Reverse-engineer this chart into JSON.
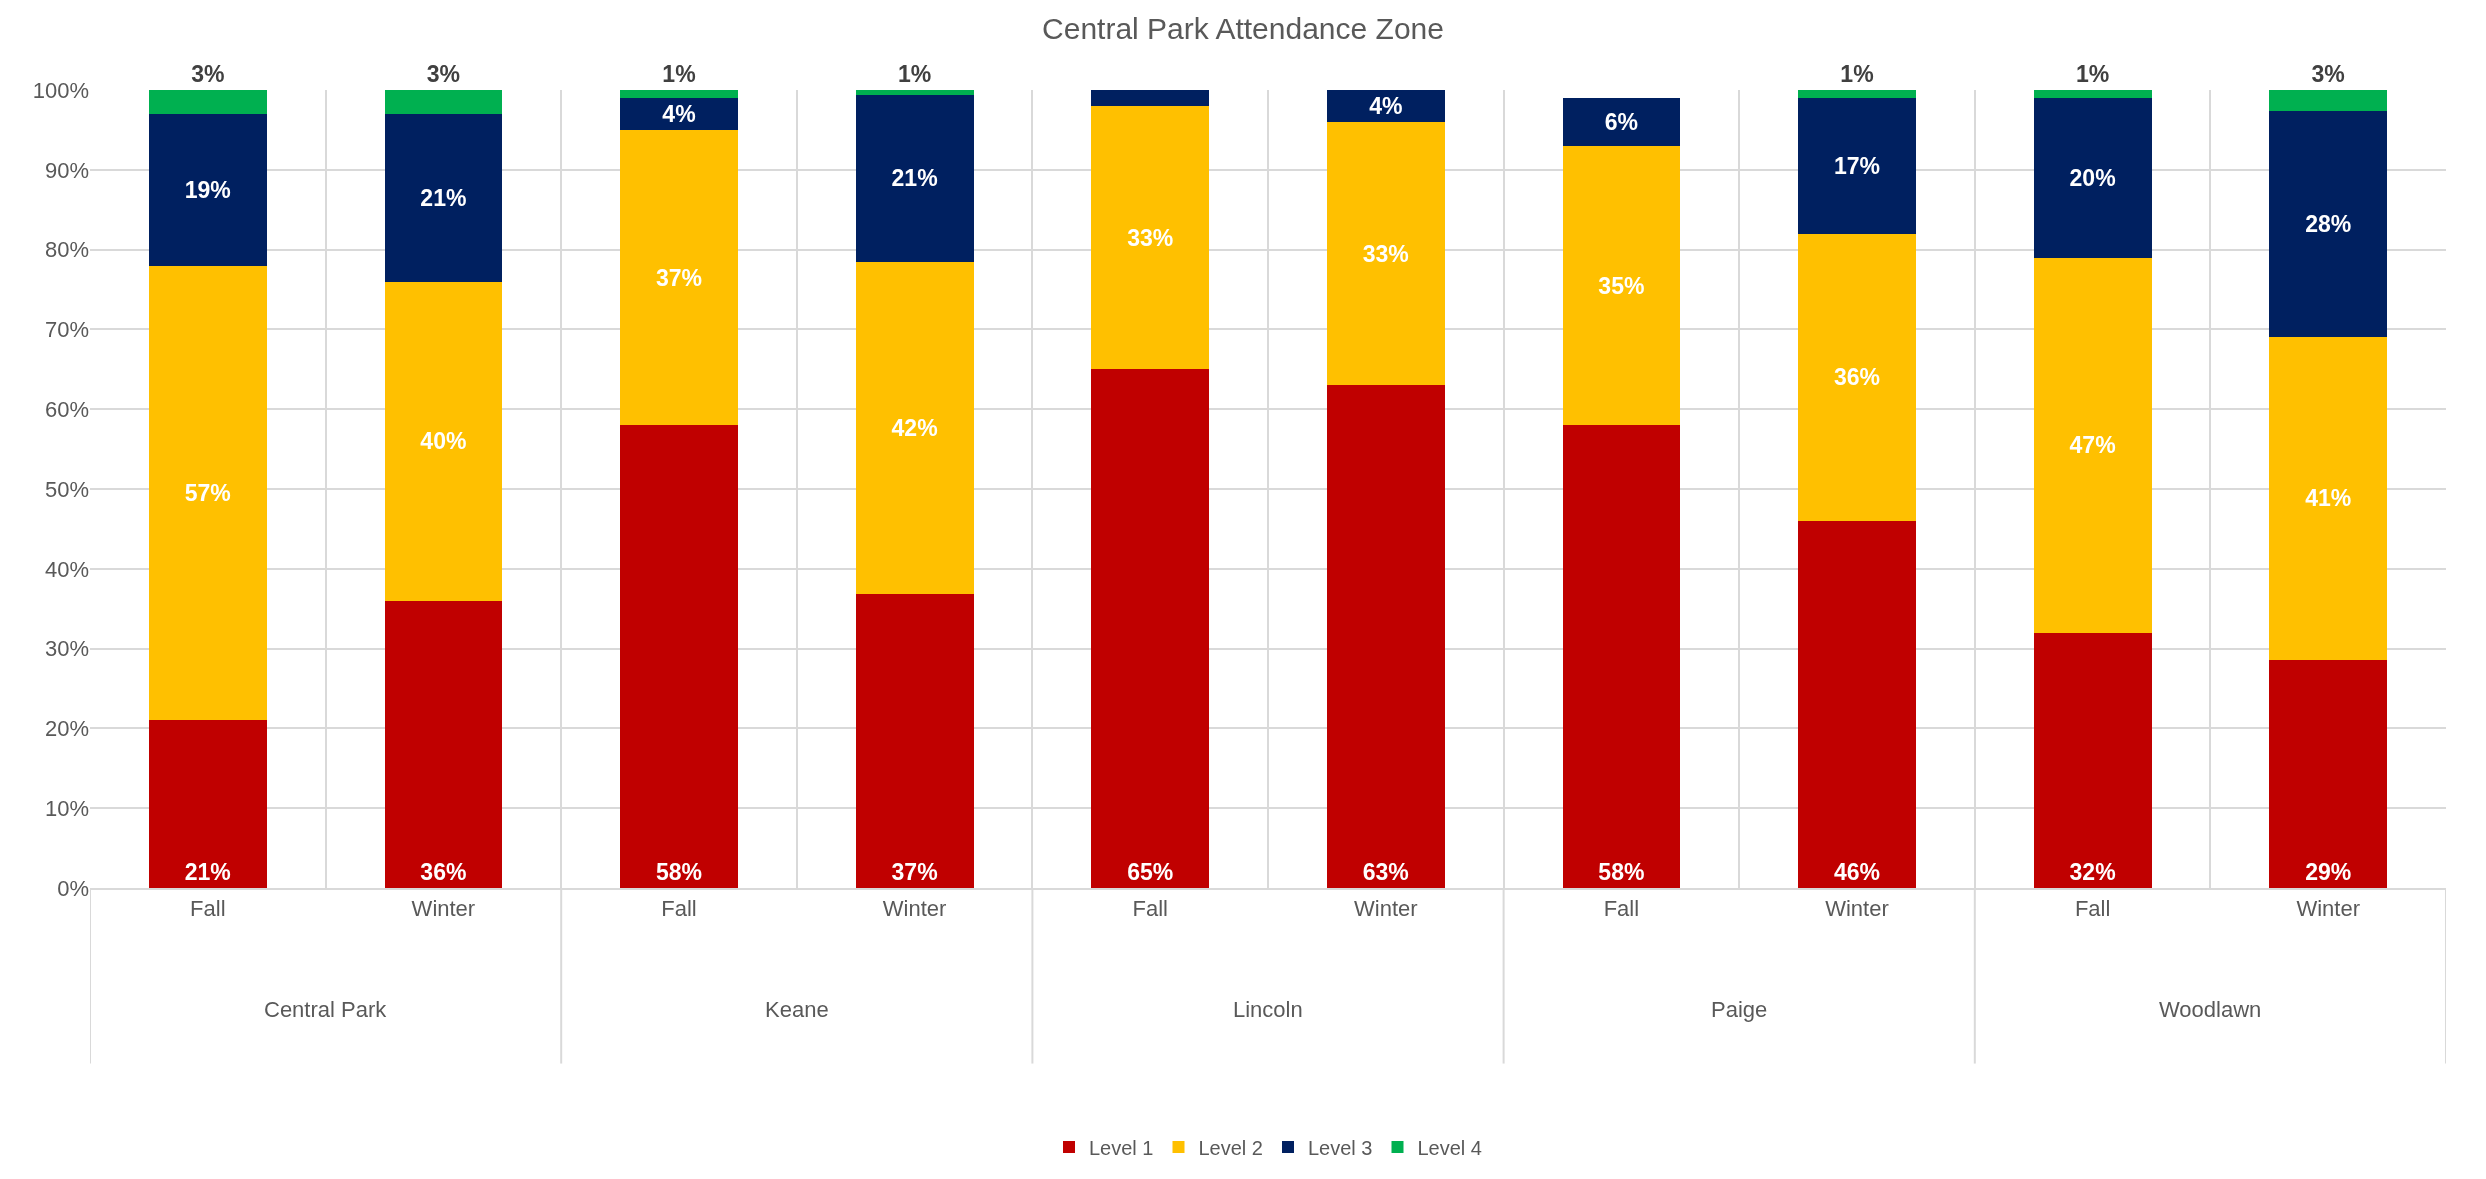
{
  "chart_data": {
    "type": "bar",
    "title": "Central Park Attendance Zone",
    "stacked": true,
    "categories": [
      "Fall",
      "Winter",
      "Fall",
      "Winter",
      "Fall",
      "Winter",
      "Fall",
      "Winter",
      "Fall",
      "Winter"
    ],
    "annotations": [
      "Central Park",
      "Keane",
      "Lincoln",
      "Paige",
      "Woodlawn"
    ],
    "series": [
      {
        "name": "Level 1",
        "color": "#c00000",
        "values": [
          21,
          36,
          58,
          36.8,
          65,
          63,
          58,
          46,
          32,
          28.6
        ],
        "value_labels": [
          "21%",
          "36%",
          "58%",
          "37%",
          "65%",
          "63%",
          "58%",
          "46%",
          "32%",
          "29%"
        ]
      },
      {
        "name": "Level 2",
        "color": "#ffc000",
        "values": [
          57,
          40,
          37,
          41.7,
          33,
          33,
          35,
          36,
          47,
          40.5
        ],
        "value_labels": [
          "57%",
          "40%",
          "37%",
          "42%",
          "33%",
          "33%",
          "35%",
          "36%",
          "47%",
          "41%"
        ]
      },
      {
        "name": "Level 3",
        "color": "#002060",
        "values": [
          19,
          21,
          4,
          20.9,
          2,
          4,
          6,
          17,
          20,
          28.3
        ],
        "value_labels": [
          "19%",
          "21%",
          "4%",
          "21%",
          null,
          "4%",
          "6%",
          "17%",
          "20%",
          "28%"
        ]
      },
      {
        "name": "Level 4",
        "color": "#00b050",
        "values": [
          3,
          3,
          1,
          0.6,
          0,
          0,
          0,
          1,
          1,
          2.6
        ],
        "value_labels": [
          "3%",
          "3%",
          "1%",
          "1%",
          null,
          null,
          null,
          "1%",
          "1%",
          "3%"
        ]
      }
    ],
    "ylim": [
      0,
      100
    ],
    "yticks": [
      {
        "value": 0,
        "label": "0%"
      },
      {
        "value": 10,
        "label": "10%"
      },
      {
        "value": 20,
        "label": "20%"
      },
      {
        "value": 30,
        "label": "30%"
      },
      {
        "value": 40,
        "label": "40%"
      },
      {
        "value": 50,
        "label": "50%"
      },
      {
        "value": 60,
        "label": "60%"
      },
      {
        "value": 70,
        "label": "70%"
      },
      {
        "value": 80,
        "label": "80%"
      },
      {
        "value": 90,
        "label": "90%"
      },
      {
        "value": 100,
        "label": "100%"
      }
    ],
    "grid": true,
    "legend": "bottom"
  }
}
